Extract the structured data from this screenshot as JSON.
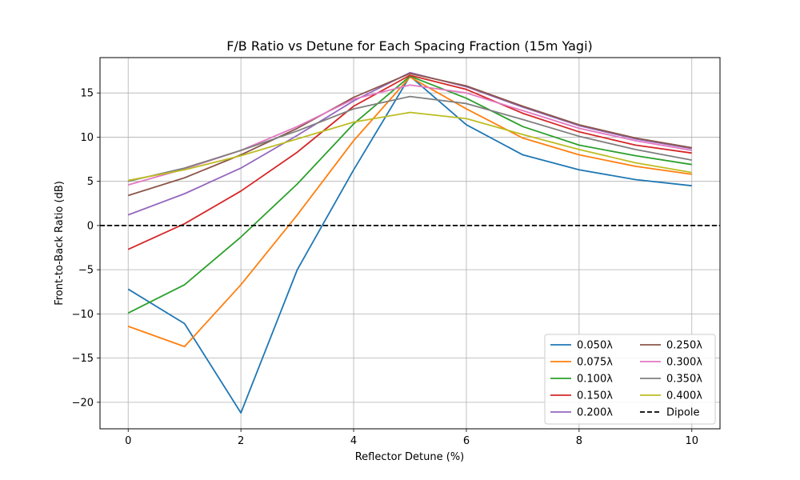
{
  "chart_data": {
    "type": "line",
    "title": "F/B Ratio vs Detune for Each Spacing Fraction (15m Yagi)",
    "xlabel": "Reflector Detune (%)",
    "ylabel": "Front-to-Back Ratio (dB)",
    "xlim": [
      -0.5,
      10.5
    ],
    "ylim": [
      -23,
      19
    ],
    "xticks": [
      0,
      2,
      4,
      6,
      8,
      10
    ],
    "yticks": [
      -20,
      -15,
      -10,
      -5,
      0,
      5,
      10,
      15
    ],
    "grid": true,
    "legend_position": "lower-right",
    "x": [
      0,
      1,
      2,
      3,
      4,
      5,
      6,
      7,
      8,
      9,
      10
    ],
    "series": [
      {
        "name": "0.050λ",
        "color": "#1f77b4",
        "values": [
          -7.2,
          -11.1,
          -21.2,
          -5.0,
          6.3,
          16.9,
          11.4,
          8.0,
          6.3,
          5.2,
          4.5
        ]
      },
      {
        "name": "0.075λ",
        "color": "#ff7f0e",
        "values": [
          -11.4,
          -13.7,
          -6.7,
          1.2,
          9.6,
          16.8,
          13.2,
          9.9,
          8.0,
          6.7,
          5.8
        ]
      },
      {
        "name": "0.100λ",
        "color": "#2ca02c",
        "values": [
          -9.9,
          -6.7,
          -1.3,
          4.7,
          11.5,
          16.9,
          14.4,
          11.2,
          9.1,
          7.9,
          6.9
        ]
      },
      {
        "name": "0.150λ",
        "color": "#d62728",
        "values": [
          -2.7,
          0.2,
          3.9,
          8.3,
          13.5,
          17.0,
          15.4,
          12.7,
          10.6,
          9.1,
          8.2
        ]
      },
      {
        "name": "0.200λ",
        "color": "#9467bd",
        "values": [
          1.2,
          3.6,
          6.5,
          10.2,
          14.1,
          17.3,
          15.7,
          13.4,
          11.3,
          9.8,
          8.7
        ]
      },
      {
        "name": "0.250λ",
        "color": "#8c564b",
        "values": [
          3.4,
          5.4,
          8.0,
          11.0,
          14.5,
          17.2,
          15.8,
          13.5,
          11.4,
          9.9,
          8.8
        ]
      },
      {
        "name": "0.300λ",
        "color": "#e377c2",
        "values": [
          4.6,
          6.4,
          8.5,
          11.2,
          14.3,
          15.9,
          15.0,
          13.0,
          11.0,
          9.6,
          8.5
        ]
      },
      {
        "name": "0.350λ",
        "color": "#7f7f7f",
        "values": [
          5.0,
          6.5,
          8.5,
          10.7,
          13.2,
          14.6,
          13.8,
          12.0,
          10.1,
          8.6,
          7.4
        ]
      },
      {
        "name": "0.400λ",
        "color": "#bcbd22",
        "values": [
          5.1,
          6.3,
          7.9,
          9.8,
          11.7,
          12.8,
          12.1,
          10.3,
          8.6,
          7.1,
          6.0
        ]
      }
    ],
    "reference_line": {
      "name": "Dipole",
      "value": 0,
      "color": "#000000",
      "style": "dashed"
    }
  }
}
